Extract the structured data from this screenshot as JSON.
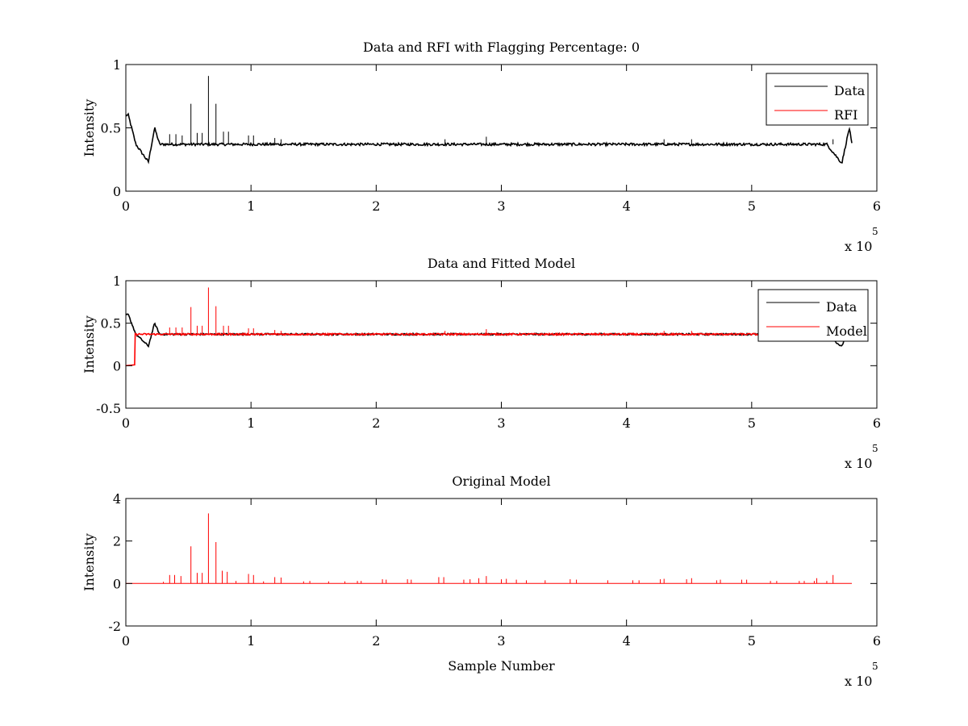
{
  "chart_data": [
    {
      "type": "line",
      "title": "Data and RFI with Flagging Percentage: 0",
      "xlabel": "",
      "ylabel": "Intensity",
      "xlim": [
        0,
        6
      ],
      "ylim": [
        0,
        1
      ],
      "x_ticks": [
        "0",
        "1",
        "2",
        "3",
        "4",
        "5",
        "6"
      ],
      "y_ticks": [
        "0",
        "0.5",
        "1"
      ],
      "x_multiplier": "x 10",
      "x_multiplier_exp": "5",
      "legend": {
        "position": "top-right",
        "entries": [
          {
            "label": "Data",
            "color": "#000000"
          },
          {
            "label": "RFI",
            "color": "#ff0000"
          }
        ]
      },
      "series": [
        {
          "name": "Data",
          "color": "#000000",
          "baseline": 0.37,
          "noise": 0.01,
          "x_end": 5.8,
          "dips": [
            {
              "x": 0.02,
              "y": 0.6
            },
            {
              "x": 0.08,
              "y": 0.37
            },
            {
              "x": 0.18,
              "y": 0.23
            },
            {
              "x": 0.23,
              "y": 0.5
            },
            {
              "x": 0.27,
              "y": 0.37
            },
            {
              "x": 5.6,
              "y": 0.37
            },
            {
              "x": 5.72,
              "y": 0.22
            },
            {
              "x": 5.78,
              "y": 0.5
            },
            {
              "x": 5.8,
              "y": 0.37
            }
          ],
          "spikes": [
            {
              "x": 0.35,
              "y": 0.45
            },
            {
              "x": 0.4,
              "y": 0.45
            },
            {
              "x": 0.45,
              "y": 0.44
            },
            {
              "x": 0.52,
              "y": 0.69
            },
            {
              "x": 0.57,
              "y": 0.46
            },
            {
              "x": 0.61,
              "y": 0.46
            },
            {
              "x": 0.66,
              "y": 0.91
            },
            {
              "x": 0.72,
              "y": 0.69
            },
            {
              "x": 0.78,
              "y": 0.47
            },
            {
              "x": 0.82,
              "y": 0.47
            },
            {
              "x": 0.98,
              "y": 0.44
            },
            {
              "x": 1.02,
              "y": 0.44
            },
            {
              "x": 1.19,
              "y": 0.42
            },
            {
              "x": 1.24,
              "y": 0.41
            },
            {
              "x": 2.55,
              "y": 0.41
            },
            {
              "x": 2.88,
              "y": 0.43
            },
            {
              "x": 4.3,
              "y": 0.41
            },
            {
              "x": 4.52,
              "y": 0.41
            },
            {
              "x": 5.65,
              "y": 0.41
            }
          ]
        }
      ]
    },
    {
      "type": "line",
      "title": "Data and Fitted Model",
      "xlabel": "",
      "ylabel": "Intensity",
      "xlim": [
        0,
        6
      ],
      "ylim": [
        -0.5,
        1
      ],
      "x_ticks": [
        "0",
        "1",
        "2",
        "3",
        "4",
        "5",
        "6"
      ],
      "y_ticks": [
        "-0.5",
        "0",
        "0.5",
        "1"
      ],
      "x_multiplier": "x 10",
      "x_multiplier_exp": "5",
      "legend": {
        "position": "top-right",
        "entries": [
          {
            "label": "Data",
            "color": "#000000"
          },
          {
            "label": "Model",
            "color": "#ff0000"
          }
        ]
      },
      "series": [
        {
          "name": "Data",
          "color": "#000000",
          "baseline": 0.37,
          "noise": 0.01,
          "x_end": 5.8,
          "dips": [
            {
              "x": 0.02,
              "y": 0.6
            },
            {
              "x": 0.08,
              "y": 0.37
            },
            {
              "x": 0.18,
              "y": 0.23
            },
            {
              "x": 0.23,
              "y": 0.5
            },
            {
              "x": 0.27,
              "y": 0.37
            },
            {
              "x": 5.6,
              "y": 0.37
            },
            {
              "x": 5.72,
              "y": 0.22
            },
            {
              "x": 5.78,
              "y": 0.5
            },
            {
              "x": 5.8,
              "y": 0.37
            }
          ]
        },
        {
          "name": "Model",
          "color": "#ff0000",
          "baseline": 0.37,
          "noise": 0.01,
          "x_end": 5.8,
          "start_segment": [
            {
              "x": 0,
              "y": 0.0
            },
            {
              "x": 0.07,
              "y": 0.01
            },
            {
              "x": 0.075,
              "y": 0.37
            }
          ],
          "spikes": [
            {
              "x": 0.35,
              "y": 0.45
            },
            {
              "x": 0.4,
              "y": 0.45
            },
            {
              "x": 0.45,
              "y": 0.45
            },
            {
              "x": 0.52,
              "y": 0.69
            },
            {
              "x": 0.57,
              "y": 0.47
            },
            {
              "x": 0.61,
              "y": 0.47
            },
            {
              "x": 0.66,
              "y": 0.92
            },
            {
              "x": 0.72,
              "y": 0.7
            },
            {
              "x": 0.78,
              "y": 0.47
            },
            {
              "x": 0.82,
              "y": 0.47
            },
            {
              "x": 0.98,
              "y": 0.44
            },
            {
              "x": 1.02,
              "y": 0.44
            },
            {
              "x": 1.19,
              "y": 0.42
            },
            {
              "x": 1.24,
              "y": 0.41
            },
            {
              "x": 2.55,
              "y": 0.41
            },
            {
              "x": 2.88,
              "y": 0.43
            },
            {
              "x": 4.3,
              "y": 0.41
            },
            {
              "x": 4.52,
              "y": 0.41
            }
          ]
        }
      ]
    },
    {
      "type": "line",
      "title": "Original Model",
      "xlabel": "Sample Number",
      "ylabel": "Intensity",
      "xlim": [
        0,
        6
      ],
      "ylim": [
        -2,
        4
      ],
      "x_ticks": [
        "0",
        "1",
        "2",
        "3",
        "4",
        "5",
        "6"
      ],
      "y_ticks": [
        "-2",
        "0",
        "2",
        "4"
      ],
      "x_multiplier": "x 10",
      "x_multiplier_exp": "5",
      "series": [
        {
          "name": "Model",
          "color": "#ff0000",
          "baseline": 0.0,
          "x_end": 5.8,
          "spikes": [
            {
              "x": 0.3,
              "y": 0.08
            },
            {
              "x": 0.35,
              "y": 0.4
            },
            {
              "x": 0.39,
              "y": 0.4
            },
            {
              "x": 0.44,
              "y": 0.35
            },
            {
              "x": 0.52,
              "y": 1.75
            },
            {
              "x": 0.57,
              "y": 0.5
            },
            {
              "x": 0.61,
              "y": 0.5
            },
            {
              "x": 0.66,
              "y": 3.3
            },
            {
              "x": 0.72,
              "y": 1.95
            },
            {
              "x": 0.77,
              "y": 0.6
            },
            {
              "x": 0.81,
              "y": 0.55
            },
            {
              "x": 0.88,
              "y": 0.12
            },
            {
              "x": 0.98,
              "y": 0.45
            },
            {
              "x": 1.02,
              "y": 0.4
            },
            {
              "x": 1.1,
              "y": 0.1
            },
            {
              "x": 1.19,
              "y": 0.3
            },
            {
              "x": 1.24,
              "y": 0.28
            },
            {
              "x": 1.42,
              "y": 0.1
            },
            {
              "x": 1.47,
              "y": 0.12
            },
            {
              "x": 1.62,
              "y": 0.1
            },
            {
              "x": 1.75,
              "y": 0.1
            },
            {
              "x": 1.85,
              "y": 0.12
            },
            {
              "x": 1.88,
              "y": 0.12
            },
            {
              "x": 2.05,
              "y": 0.2
            },
            {
              "x": 2.08,
              "y": 0.18
            },
            {
              "x": 2.25,
              "y": 0.2
            },
            {
              "x": 2.28,
              "y": 0.18
            },
            {
              "x": 2.5,
              "y": 0.3
            },
            {
              "x": 2.54,
              "y": 0.3
            },
            {
              "x": 2.7,
              "y": 0.18
            },
            {
              "x": 2.75,
              "y": 0.2
            },
            {
              "x": 2.82,
              "y": 0.25
            },
            {
              "x": 2.88,
              "y": 0.35
            },
            {
              "x": 3.0,
              "y": 0.2
            },
            {
              "x": 3.04,
              "y": 0.22
            },
            {
              "x": 3.12,
              "y": 0.18
            },
            {
              "x": 3.2,
              "y": 0.15
            },
            {
              "x": 3.35,
              "y": 0.15
            },
            {
              "x": 3.55,
              "y": 0.2
            },
            {
              "x": 3.6,
              "y": 0.18
            },
            {
              "x": 3.85,
              "y": 0.15
            },
            {
              "x": 4.05,
              "y": 0.15
            },
            {
              "x": 4.1,
              "y": 0.15
            },
            {
              "x": 4.27,
              "y": 0.2
            },
            {
              "x": 4.3,
              "y": 0.22
            },
            {
              "x": 4.48,
              "y": 0.2
            },
            {
              "x": 4.52,
              "y": 0.25
            },
            {
              "x": 4.72,
              "y": 0.15
            },
            {
              "x": 4.75,
              "y": 0.18
            },
            {
              "x": 4.92,
              "y": 0.18
            },
            {
              "x": 4.96,
              "y": 0.18
            },
            {
              "x": 5.15,
              "y": 0.12
            },
            {
              "x": 5.2,
              "y": 0.12
            },
            {
              "x": 5.38,
              "y": 0.12
            },
            {
              "x": 5.42,
              "y": 0.12
            },
            {
              "x": 5.5,
              "y": 0.12
            },
            {
              "x": 5.52,
              "y": 0.25
            },
            {
              "x": 5.6,
              "y": 0.12
            },
            {
              "x": 5.65,
              "y": 0.4
            }
          ]
        }
      ]
    }
  ]
}
